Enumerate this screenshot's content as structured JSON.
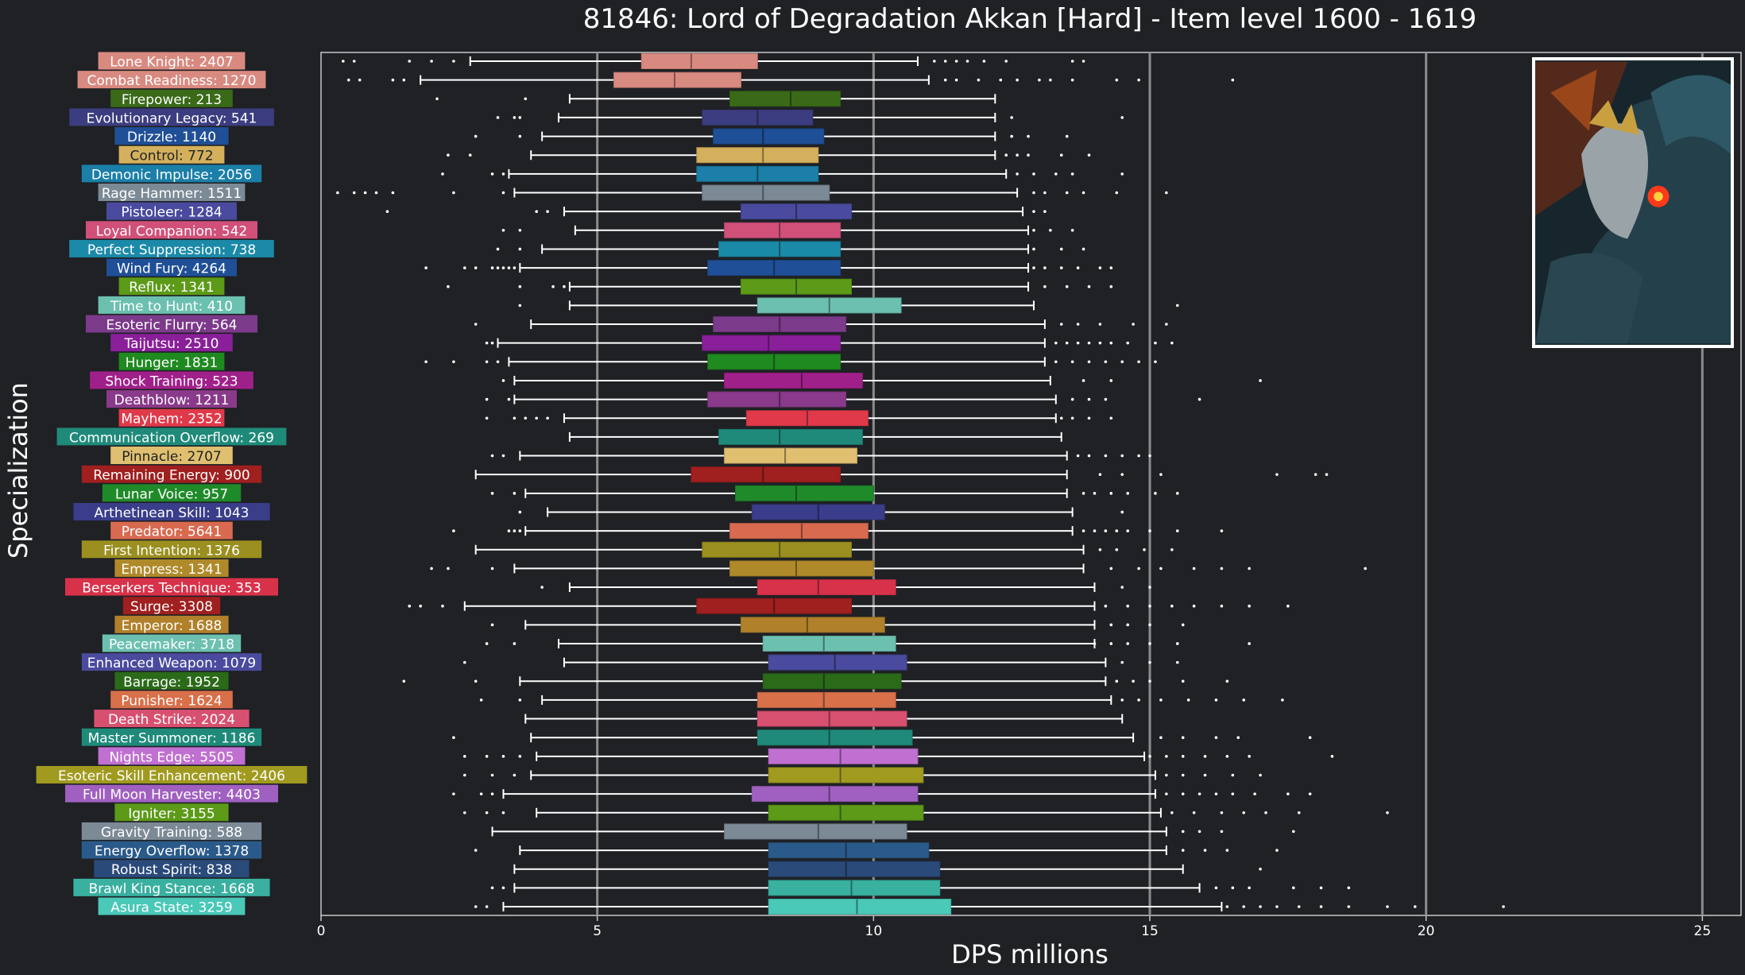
{
  "chart_data": {
    "type": "box",
    "title": "81846: Lord of Degradation Akkan [Hard] - Item level 1600 - 1619",
    "xlabel": "DPS millions",
    "ylabel": "Specialization",
    "xlim": [
      0,
      25.7
    ],
    "xticks": [
      0,
      5,
      10,
      15,
      20,
      25
    ],
    "grid_x": [
      5,
      10,
      15,
      20,
      25
    ],
    "orientation": "horizontal",
    "series": [
      {
        "label": "Lone Knight: 2407",
        "color": "#d98a80",
        "whisker_low": 2.7,
        "q1": 5.8,
        "median": 6.7,
        "q3": 7.9,
        "whisker_high": 10.8,
        "outliers": [
          0.4,
          0.6,
          1.6,
          2.0,
          2.4,
          11.1,
          11.3,
          11.5,
          11.7,
          12.0,
          12.4,
          13.6,
          13.8
        ]
      },
      {
        "label": "Combat Readiness: 1270",
        "color": "#d98a80",
        "whisker_low": 1.8,
        "q1": 5.3,
        "median": 6.4,
        "q3": 7.6,
        "whisker_high": 11.0,
        "outliers": [
          0.5,
          0.7,
          1.3,
          1.5,
          11.3,
          11.5,
          11.9,
          12.3,
          12.6,
          13.0,
          13.2,
          13.6,
          14.4,
          14.8,
          16.5
        ]
      },
      {
        "label": "Firepower: 213",
        "color": "#3a6a18",
        "whisker_low": 4.5,
        "q1": 7.4,
        "median": 8.5,
        "q3": 9.4,
        "whisker_high": 12.2,
        "outliers": [
          2.1,
          3.7
        ]
      },
      {
        "label": "Evolutionary Legacy: 541",
        "color": "#3c3d80",
        "whisker_low": 4.3,
        "q1": 6.9,
        "median": 7.9,
        "q3": 8.9,
        "whisker_high": 12.2,
        "outliers": [
          3.2,
          3.5,
          3.6,
          12.5,
          14.5
        ]
      },
      {
        "label": "Drizzle: 1140",
        "color": "#1f4f96",
        "whisker_low": 4.0,
        "q1": 7.1,
        "median": 8.0,
        "q3": 9.1,
        "whisker_high": 12.2,
        "outliers": [
          2.8,
          3.6,
          12.5,
          12.8,
          13.5
        ]
      },
      {
        "label": "Control: 772",
        "color": "#d4b05c",
        "whisker_low": 3.8,
        "q1": 6.8,
        "median": 8.0,
        "q3": 9.0,
        "whisker_high": 12.2,
        "outliers": [
          2.3,
          2.7,
          12.4,
          12.6,
          12.8,
          13.4,
          13.9
        ]
      },
      {
        "label": "Demonic Impulse: 2056",
        "color": "#1b7fa8",
        "whisker_low": 3.4,
        "q1": 6.8,
        "median": 7.9,
        "q3": 9.0,
        "whisker_high": 12.4,
        "outliers": [
          2.2,
          3.1,
          3.3,
          12.6,
          12.9,
          13.3,
          13.6,
          14.5
        ]
      },
      {
        "label": "Rage Hammer: 1511",
        "color": "#7c8a96",
        "whisker_low": 3.5,
        "q1": 6.9,
        "median": 8.0,
        "q3": 9.2,
        "whisker_high": 12.6,
        "outliers": [
          0.3,
          0.6,
          0.8,
          1.0,
          1.3,
          2.4,
          3.3,
          12.9,
          13.1,
          13.5,
          13.8,
          14.4,
          15.3
        ]
      },
      {
        "label": "Pistoleer: 1284",
        "color": "#4a4a9e",
        "whisker_low": 4.4,
        "q1": 7.6,
        "median": 8.6,
        "q3": 9.6,
        "whisker_high": 12.7,
        "outliers": [
          1.2,
          3.9,
          4.1,
          12.9,
          13.1
        ]
      },
      {
        "label": "Loyal Companion: 542",
        "color": "#d0507a",
        "whisker_low": 4.6,
        "q1": 7.3,
        "median": 8.3,
        "q3": 9.4,
        "whisker_high": 12.8,
        "outliers": [
          3.3,
          3.6,
          12.9,
          13.2,
          13.6
        ]
      },
      {
        "label": "Perfect Suppression: 738",
        "color": "#1b8aa8",
        "whisker_low": 4.0,
        "q1": 7.2,
        "median": 8.3,
        "q3": 9.4,
        "whisker_high": 12.8,
        "outliers": [
          3.2,
          3.6,
          12.9,
          13.4,
          13.8
        ]
      },
      {
        "label": "Wind Fury: 4264",
        "color": "#1f4f96",
        "whisker_low": 3.6,
        "q1": 7.0,
        "median": 8.2,
        "q3": 9.4,
        "whisker_high": 12.8,
        "outliers": [
          1.9,
          2.6,
          2.8,
          3.1,
          3.2,
          3.3,
          3.4,
          3.5,
          12.9,
          13.1,
          13.4,
          13.7,
          14.1,
          14.3
        ]
      },
      {
        "label": "Reflux: 1341",
        "color": "#5c9a18",
        "whisker_low": 4.5,
        "q1": 7.6,
        "median": 8.6,
        "q3": 9.6,
        "whisker_high": 12.8,
        "outliers": [
          2.3,
          3.6,
          4.2,
          4.4,
          13.1,
          13.5,
          13.9,
          14.3
        ]
      },
      {
        "label": "Time to Hunt: 410",
        "color": "#6cc0b0",
        "whisker_low": 4.5,
        "q1": 7.9,
        "median": 9.2,
        "q3": 10.5,
        "whisker_high": 12.9,
        "outliers": [
          3.6,
          15.5
        ]
      },
      {
        "label": "Esoteric Flurry: 564",
        "color": "#7c3a8a",
        "whisker_low": 3.8,
        "q1": 7.1,
        "median": 8.3,
        "q3": 9.5,
        "whisker_high": 13.1,
        "outliers": [
          2.8,
          13.4,
          13.7,
          14.1,
          14.7,
          15.3
        ]
      },
      {
        "label": "Taijutsu: 2510",
        "color": "#8a1f9a",
        "whisker_low": 3.2,
        "q1": 6.9,
        "median": 8.1,
        "q3": 9.4,
        "whisker_high": 13.1,
        "outliers": [
          3.0,
          3.1,
          13.3,
          13.5,
          13.7,
          13.9,
          14.1,
          14.3,
          14.6,
          15.1,
          15.4
        ]
      },
      {
        "label": "Hunger: 1831",
        "color": "#1f8a1f",
        "whisker_low": 3.4,
        "q1": 7.0,
        "median": 8.2,
        "q3": 9.4,
        "whisker_high": 13.1,
        "outliers": [
          1.9,
          2.4,
          3.0,
          3.2,
          13.3,
          13.6,
          13.9,
          14.2,
          14.5,
          14.8,
          15.1
        ]
      },
      {
        "label": "Shock Training: 523",
        "color": "#a0208a",
        "whisker_low": 3.5,
        "q1": 7.3,
        "median": 8.7,
        "q3": 9.8,
        "whisker_high": 13.2,
        "outliers": [
          3.3,
          13.8,
          14.3,
          17.0
        ]
      },
      {
        "label": "Deathblow: 1211",
        "color": "#8a3a8a",
        "whisker_low": 3.5,
        "q1": 7.0,
        "median": 8.3,
        "q3": 9.5,
        "whisker_high": 13.3,
        "outliers": [
          3.0,
          3.4,
          13.6,
          13.9,
          14.2,
          15.9
        ]
      },
      {
        "label": "Mayhem: 2352",
        "color": "#e03a4a",
        "whisker_low": 4.4,
        "q1": 7.7,
        "median": 8.8,
        "q3": 9.9,
        "whisker_high": 13.3,
        "outliers": [
          3.0,
          3.5,
          3.7,
          3.9,
          4.1,
          13.4,
          13.6,
          13.9,
          14.3
        ]
      },
      {
        "label": "Communication Overflow: 269",
        "color": "#1f8a7a",
        "whisker_low": 4.5,
        "q1": 7.2,
        "median": 8.3,
        "q3": 9.8,
        "whisker_high": 13.4,
        "outliers": []
      },
      {
        "label": "Pinnacle: 2707",
        "color": "#e0c070",
        "whisker_low": 3.6,
        "q1": 7.3,
        "median": 8.4,
        "q3": 9.7,
        "whisker_high": 13.5,
        "outliers": [
          3.1,
          3.3,
          13.7,
          13.9,
          14.2,
          14.5,
          14.8,
          15.0
        ]
      },
      {
        "label": "Remaining Energy: 900",
        "color": "#a01f1f",
        "whisker_low": 2.8,
        "q1": 6.7,
        "median": 8.0,
        "q3": 9.4,
        "whisker_high": 13.5,
        "outliers": [
          14.1,
          14.5,
          15.2,
          17.3,
          18.0,
          18.2
        ]
      },
      {
        "label": "Lunar Voice: 957",
        "color": "#1f8a2a",
        "whisker_low": 3.7,
        "q1": 7.5,
        "median": 8.6,
        "q3": 10.0,
        "whisker_high": 13.5,
        "outliers": [
          3.1,
          3.5,
          13.8,
          14.0,
          14.3,
          14.6,
          15.1,
          15.5
        ]
      },
      {
        "label": "Arthetinean Skill: 1043",
        "color": "#3a3d8a",
        "whisker_low": 4.1,
        "q1": 7.8,
        "median": 9.0,
        "q3": 10.2,
        "whisker_high": 13.6,
        "outliers": [
          3.6,
          14.5
        ]
      },
      {
        "label": "Predator: 5641",
        "color": "#d86a50",
        "whisker_low": 3.7,
        "q1": 7.4,
        "median": 8.7,
        "q3": 9.9,
        "whisker_high": 13.6,
        "outliers": [
          2.4,
          3.4,
          3.5,
          3.6,
          13.8,
          14.0,
          14.2,
          14.4,
          14.6,
          15.0,
          15.5,
          16.3
        ]
      },
      {
        "label": "First Intention: 1376",
        "color": "#9a8f1f",
        "whisker_low": 2.8,
        "q1": 6.9,
        "median": 8.3,
        "q3": 9.6,
        "whisker_high": 13.8,
        "outliers": [
          14.1,
          14.4,
          14.9,
          15.4
        ]
      },
      {
        "label": "Empress: 1341",
        "color": "#b08a2a",
        "whisker_low": 3.5,
        "q1": 7.4,
        "median": 8.6,
        "q3": 10.0,
        "whisker_high": 13.8,
        "outliers": [
          2.0,
          2.3,
          3.1,
          14.3,
          14.8,
          15.2,
          15.8,
          16.3,
          16.8,
          18.9
        ]
      },
      {
        "label": "Berserkers Technique: 353",
        "color": "#d8324a",
        "whisker_low": 4.5,
        "q1": 7.9,
        "median": 9.0,
        "q3": 10.4,
        "whisker_high": 14.0,
        "outliers": [
          4.0,
          14.5,
          15.0
        ]
      },
      {
        "label": "Surge: 3308",
        "color": "#a01f1f",
        "whisker_low": 2.6,
        "q1": 6.8,
        "median": 8.2,
        "q3": 9.6,
        "whisker_high": 14.0,
        "outliers": [
          1.6,
          1.8,
          2.2,
          14.2,
          14.6,
          15.0,
          15.4,
          15.8,
          16.3,
          16.8,
          17.5
        ]
      },
      {
        "label": "Emperor: 1688",
        "color": "#b0802a",
        "whisker_low": 3.7,
        "q1": 7.6,
        "median": 8.8,
        "q3": 10.2,
        "whisker_high": 14.0,
        "outliers": [
          3.1,
          14.3,
          14.6,
          15.0,
          15.6
        ]
      },
      {
        "label": "Peacemaker: 3718",
        "color": "#6cc0b0",
        "whisker_low": 4.3,
        "q1": 8.0,
        "median": 9.1,
        "q3": 10.4,
        "whisker_high": 14.0,
        "outliers": [
          3.0,
          3.5,
          14.0,
          14.3,
          14.6,
          15.0,
          15.5,
          16.8
        ]
      },
      {
        "label": "Enhanced Weapon: 1079",
        "color": "#4a4a9e",
        "whisker_low": 4.4,
        "q1": 8.1,
        "median": 9.3,
        "q3": 10.6,
        "whisker_high": 14.2,
        "outliers": [
          2.6,
          14.5,
          15.0,
          15.5
        ]
      },
      {
        "label": "Barrage: 1952",
        "color": "#2a6a18",
        "whisker_low": 3.6,
        "q1": 8.0,
        "median": 9.1,
        "q3": 10.5,
        "whisker_high": 14.2,
        "outliers": [
          1.5,
          2.8,
          14.4,
          14.7,
          15.0,
          15.6,
          16.4
        ]
      },
      {
        "label": "Punisher: 1624",
        "color": "#d8704a",
        "whisker_low": 4.0,
        "q1": 7.9,
        "median": 9.1,
        "q3": 10.4,
        "whisker_high": 14.3,
        "outliers": [
          2.9,
          3.6,
          14.5,
          14.8,
          15.2,
          15.7,
          16.2,
          16.7,
          17.4
        ]
      },
      {
        "label": "Death Strike: 2024",
        "color": "#d85070",
        "whisker_low": 3.7,
        "q1": 7.9,
        "median": 9.2,
        "q3": 10.6,
        "whisker_high": 14.5,
        "outliers": []
      },
      {
        "label": "Master Summoner: 1186",
        "color": "#1f8a7a",
        "whisker_low": 3.8,
        "q1": 7.9,
        "median": 9.2,
        "q3": 10.7,
        "whisker_high": 14.7,
        "outliers": [
          2.4,
          15.2,
          15.6,
          16.2,
          16.6,
          17.9
        ]
      },
      {
        "label": "Nights Edge: 5505",
        "color": "#c070d0",
        "whisker_low": 3.9,
        "q1": 8.1,
        "median": 9.4,
        "q3": 10.8,
        "whisker_high": 14.9,
        "outliers": [
          2.6,
          3.0,
          3.3,
          3.6,
          15.0,
          15.3,
          15.6,
          16.0,
          16.4,
          16.8,
          18.3
        ]
      },
      {
        "label": "Esoteric Skill Enhancement: 2406",
        "color": "#a09a1f",
        "whisker_low": 3.8,
        "q1": 8.1,
        "median": 9.4,
        "q3": 10.9,
        "whisker_high": 15.1,
        "outliers": [
          2.6,
          3.1,
          3.5,
          15.3,
          15.6,
          16.0,
          16.5,
          17.0
        ]
      },
      {
        "label": "Full Moon Harvester: 4403",
        "color": "#a060c0",
        "whisker_low": 3.3,
        "q1": 7.8,
        "median": 9.2,
        "q3": 10.8,
        "whisker_high": 15.1,
        "outliers": [
          2.4,
          2.9,
          3.1,
          15.3,
          15.6,
          15.9,
          16.2,
          16.5,
          16.9,
          17.5,
          17.9
        ]
      },
      {
        "label": "Igniter: 3155",
        "color": "#5c9a18",
        "whisker_low": 3.9,
        "q1": 8.1,
        "median": 9.4,
        "q3": 10.9,
        "whisker_high": 15.2,
        "outliers": [
          2.6,
          3.0,
          3.3,
          15.4,
          15.8,
          16.3,
          16.7,
          17.1,
          17.7,
          19.3
        ]
      },
      {
        "label": "Gravity Training: 588",
        "color": "#7c8a96",
        "whisker_low": 3.1,
        "q1": 7.3,
        "median": 9.0,
        "q3": 10.6,
        "whisker_high": 15.3,
        "outliers": [
          15.6,
          15.9,
          16.3,
          17.6
        ]
      },
      {
        "label": "Energy Overflow: 1378",
        "color": "#2a5a8a",
        "whisker_low": 3.6,
        "q1": 8.1,
        "median": 9.5,
        "q3": 11.0,
        "whisker_high": 15.3,
        "outliers": [
          2.8,
          15.6,
          16.0,
          16.4,
          17.3
        ]
      },
      {
        "label": "Robust Spirit: 838",
        "color": "#2a4a7a",
        "whisker_low": 3.5,
        "q1": 8.1,
        "median": 9.5,
        "q3": 11.2,
        "whisker_high": 15.6,
        "outliers": [
          17.0
        ]
      },
      {
        "label": "Brawl King Stance: 1668",
        "color": "#3ab0a0",
        "whisker_low": 3.5,
        "q1": 8.1,
        "median": 9.6,
        "q3": 11.2,
        "whisker_high": 15.9,
        "outliers": [
          3.1,
          3.3,
          16.2,
          16.5,
          16.8,
          17.6,
          18.1,
          18.6
        ]
      },
      {
        "label": "Asura State: 3259",
        "color": "#4ac8b8",
        "whisker_low": 3.3,
        "q1": 8.1,
        "median": 9.7,
        "q3": 11.4,
        "whisker_high": 16.3,
        "outliers": [
          2.8,
          3.0,
          16.4,
          16.7,
          17.0,
          17.3,
          17.7,
          18.1,
          18.6,
          19.3,
          19.8,
          21.4
        ]
      }
    ]
  }
}
